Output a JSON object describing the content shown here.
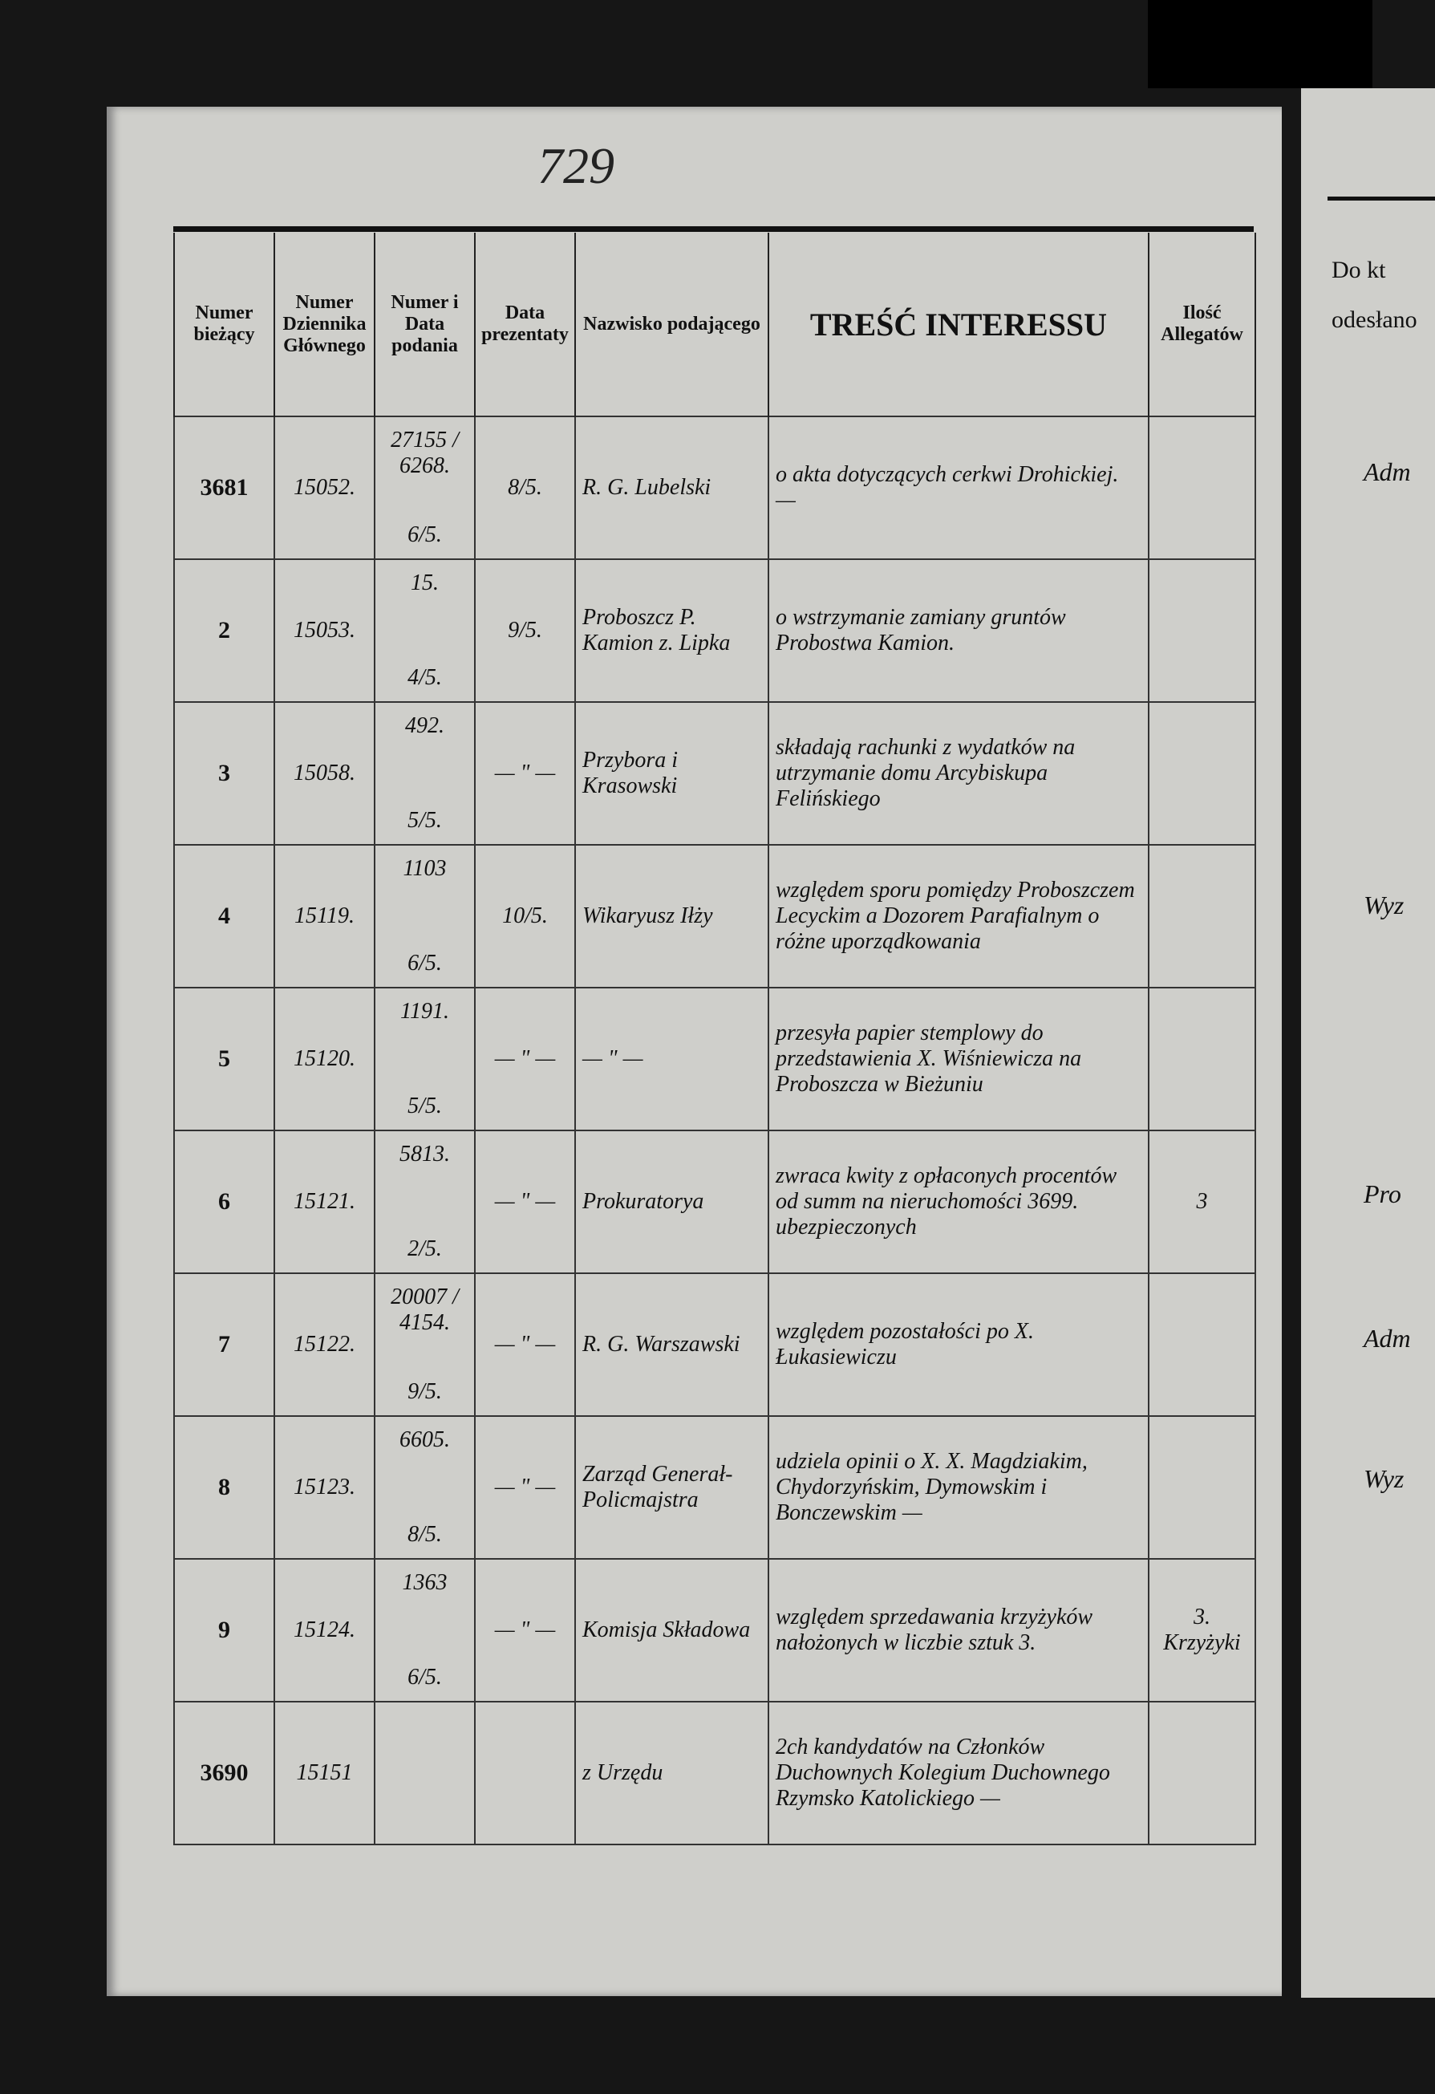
{
  "page_number": "729",
  "headers": [
    "Numer bieżący",
    "Numer Dziennika Głównego",
    "Numer i Data podania",
    "Data prezentaty",
    "Nazwisko podającego",
    "TREŚĆ INTERESSU",
    "Ilość Allegatów"
  ],
  "rows": [
    {
      "biezacy": "3681",
      "dziennik": "15052.",
      "numer": "27155 / 6268.",
      "data_podania": "6/5.",
      "prezentaty": "8/5.",
      "nazwisko": "R. G. Lubelski",
      "tresc": "o akta dotyczących cerkwi Drohickiej. —",
      "allegaty": ""
    },
    {
      "biezacy": "2",
      "dziennik": "15053.",
      "numer": "15.",
      "data_podania": "4/5.",
      "prezentaty": "9/5.",
      "nazwisko": "Proboszcz P. Kamion z. Lipka",
      "tresc": "o wstrzymanie zamiany gruntów Probostwa Kamion.",
      "allegaty": ""
    },
    {
      "biezacy": "3",
      "dziennik": "15058.",
      "numer": "492.",
      "data_podania": "5/5.",
      "prezentaty": "— \" —",
      "nazwisko": "Przybora i Krasowski",
      "tresc": "składają rachunki z wydatków na utrzymanie domu Arcybiskupa Felińskiego",
      "allegaty": ""
    },
    {
      "biezacy": "4",
      "dziennik": "15119.",
      "numer": "1103",
      "data_podania": "6/5.",
      "prezentaty": "10/5.",
      "nazwisko": "Wikaryusz Iłży",
      "tresc": "względem sporu pomiędzy Proboszczem Lecyckim a Dozorem Parafialnym o różne uporządkowania",
      "allegaty": ""
    },
    {
      "biezacy": "5",
      "dziennik": "15120.",
      "numer": "1191.",
      "data_podania": "5/5.",
      "prezentaty": "— \" —",
      "nazwisko": "— \" —",
      "tresc": "przesyła papier stemplowy do przedstawienia X. Wiśniewicza na Proboszcza w Bieżuniu",
      "allegaty": ""
    },
    {
      "biezacy": "6",
      "dziennik": "15121.",
      "numer": "5813.",
      "data_podania": "2/5.",
      "prezentaty": "— \" —",
      "nazwisko": "Prokuratorya",
      "tresc": "zwraca kwity z opłaconych procentów od summ na nieruchomości 3699. ubezpieczonych",
      "allegaty": "3"
    },
    {
      "biezacy": "7",
      "dziennik": "15122.",
      "numer": "20007 / 4154.",
      "data_podania": "9/5.",
      "prezentaty": "— \" —",
      "nazwisko": "R. G. Warszawski",
      "tresc": "względem pozostałości po X. Łukasiewiczu",
      "allegaty": ""
    },
    {
      "biezacy": "8",
      "dziennik": "15123.",
      "numer": "6605.",
      "data_podania": "8/5.",
      "prezentaty": "— \" —",
      "nazwisko": "Zarząd Generał-Policmajstra",
      "tresc": "udziela opinii o X. X. Magdziakim, Chydorzyńskim, Dymowskim i Bonczewskim —",
      "allegaty": ""
    },
    {
      "biezacy": "9",
      "dziennik": "15124.",
      "numer": "1363",
      "data_podania": "6/5.",
      "prezentaty": "— \" —",
      "nazwisko": "Komisja Składowa",
      "tresc": "względem sprzedawania krzyżyków nałożonych w liczbie sztuk 3.",
      "allegaty": "3. Krzyżyki"
    },
    {
      "biezacy": "3690",
      "dziennik": "15151",
      "numer": "",
      "data_podania": "",
      "prezentaty": "",
      "nazwisko": "z Urzędu",
      "tresc": "2ch kandydatów na Członków Duchownych Kolegium Duchownego Rzymsko Katolickiego —",
      "allegaty": ""
    }
  ],
  "right_page": {
    "headers": [
      "Do kt",
      "odesłano"
    ],
    "entries": [
      "Adm",
      "Wyz",
      "Pro",
      "Adm",
      "Wyz"
    ]
  }
}
